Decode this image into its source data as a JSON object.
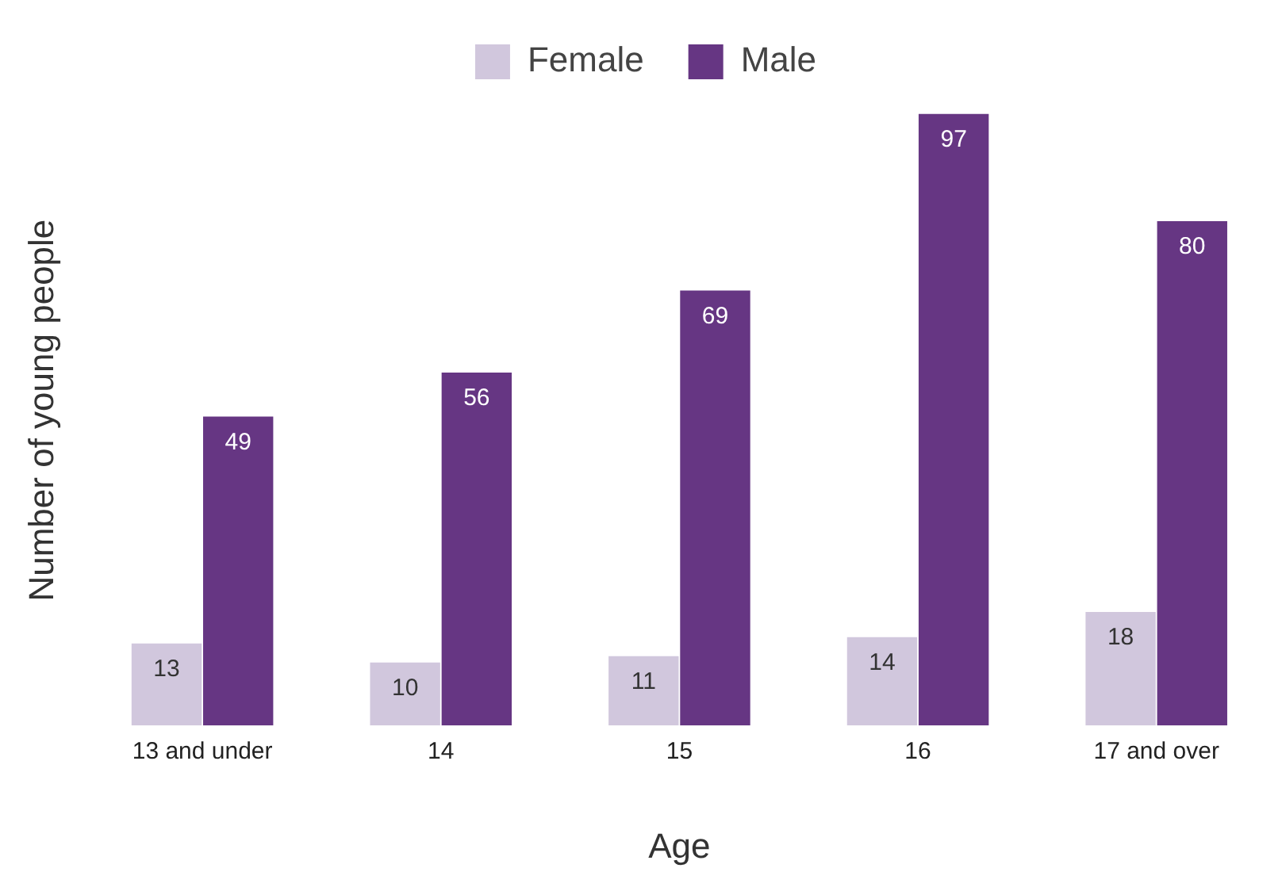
{
  "chart_data": {
    "type": "bar",
    "xlabel": "Age",
    "ylabel": "Number of young people",
    "categories": [
      "13 and under",
      "14",
      "15",
      "16",
      "17 and over"
    ],
    "series": [
      {
        "name": "Female",
        "color": "#d1c7dd",
        "values": [
          13,
          10,
          11,
          14,
          18
        ]
      },
      {
        "name": "Male",
        "color": "#663683",
        "values": [
          49,
          56,
          69,
          97,
          80
        ]
      }
    ],
    "data_labels": true,
    "legend": "top",
    "grid": false
  }
}
